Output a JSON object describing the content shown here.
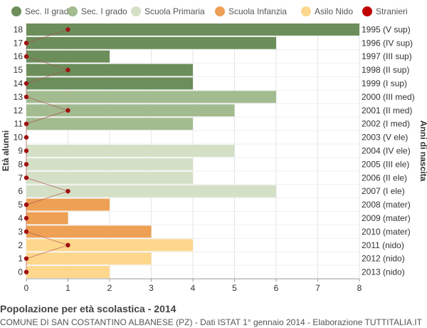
{
  "chart_data": {
    "type": "bar",
    "orientation": "horizontal",
    "ylabel": "Età alunni",
    "ylabel_right": "Anni di nascita",
    "xlim": [
      0,
      8
    ],
    "x_ticks": [
      0,
      1,
      2,
      3,
      4,
      5,
      6,
      7,
      8
    ],
    "grid": true,
    "legend_position": "top",
    "legend": [
      {
        "name": "Sec. II grado",
        "color": "#6b8e5a"
      },
      {
        "name": "Sec. I grado",
        "color": "#a2bb8f"
      },
      {
        "name": "Scuola Primaria",
        "color": "#d4e0c6"
      },
      {
        "name": "Scuola Infanzia",
        "color": "#ee a055"
      },
      {
        "name": "Asilo Nido",
        "color": "#fdd78c"
      },
      {
        "name": "Stranieri",
        "color": "#c00000"
      }
    ],
    "rows": [
      {
        "age": "18",
        "year": "1995 (V sup)",
        "value": 8,
        "stranieri": 1,
        "group": 0
      },
      {
        "age": "17",
        "year": "1996 (IV sup)",
        "value": 6,
        "stranieri": 0,
        "group": 0
      },
      {
        "age": "16",
        "year": "1997 (III sup)",
        "value": 2,
        "stranieri": 0,
        "group": 0
      },
      {
        "age": "15",
        "year": "1998 (II sup)",
        "value": 4,
        "stranieri": 1,
        "group": 0
      },
      {
        "age": "14",
        "year": "1999 (I sup)",
        "value": 4,
        "stranieri": 0,
        "group": 0
      },
      {
        "age": "13",
        "year": "2000 (III med)",
        "value": 6,
        "stranieri": 0,
        "group": 1
      },
      {
        "age": "12",
        "year": "2001 (II med)",
        "value": 5,
        "stranieri": 1,
        "group": 1
      },
      {
        "age": "11",
        "year": "2002 (I med)",
        "value": 4,
        "stranieri": 0,
        "group": 1
      },
      {
        "age": "10",
        "year": "2003 (V ele)",
        "value": 0,
        "stranieri": 0,
        "group": 2
      },
      {
        "age": "9",
        "year": "2004 (IV ele)",
        "value": 5,
        "stranieri": 0,
        "group": 2
      },
      {
        "age": "8",
        "year": "2005 (III ele)",
        "value": 4,
        "stranieri": 0,
        "group": 2
      },
      {
        "age": "7",
        "year": "2006 (II ele)",
        "value": 4,
        "stranieri": 0,
        "group": 2
      },
      {
        "age": "6",
        "year": "2007 (I ele)",
        "value": 6,
        "stranieri": 1,
        "group": 2
      },
      {
        "age": "5",
        "year": "2008 (mater)",
        "value": 2,
        "stranieri": 0,
        "group": 3
      },
      {
        "age": "4",
        "year": "2009 (mater)",
        "value": 1,
        "stranieri": 0,
        "group": 3
      },
      {
        "age": "3",
        "year": "2010 (mater)",
        "value": 3,
        "stranieri": 0,
        "group": 3
      },
      {
        "age": "2",
        "year": "2011 (nido)",
        "value": 4,
        "stranieri": 1,
        "group": 4
      },
      {
        "age": "1",
        "year": "2012 (nido)",
        "value": 3,
        "stranieri": 0,
        "group": 4
      },
      {
        "age": "0",
        "year": "2013 (nido)",
        "value": 2,
        "stranieri": 0,
        "group": 4
      }
    ]
  },
  "footer": {
    "title": "Popolazione per età scolastica - 2014",
    "subtitle": "COMUNE DI SAN COSTANTINO ALBANESE (PZ) - Dati ISTAT 1° gennaio 2014 - Elaborazione TUTTITALIA.IT"
  }
}
